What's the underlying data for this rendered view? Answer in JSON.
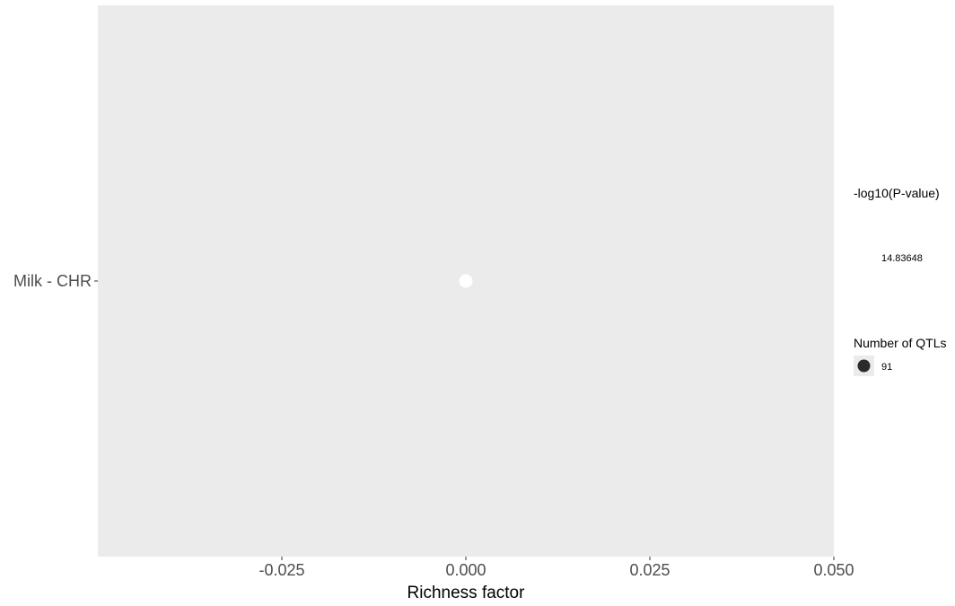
{
  "chart_data": {
    "type": "scatter",
    "x_title": "Richness factor",
    "y_categories": [
      "Milk - CHR"
    ],
    "x_ticks": [
      -0.025,
      0.0,
      0.025,
      0.05
    ],
    "x_tick_labels": [
      "-0.025",
      "0.000",
      "0.025",
      "0.050"
    ],
    "xlim": [
      -0.05,
      0.05
    ],
    "grid": false,
    "panel_background": "#ebebeb",
    "points": [
      {
        "category": "Milk - CHR",
        "x": 0.0,
        "neg_log10_p": 14.83648,
        "qtl_count": 91,
        "color": "#ffffff"
      }
    ],
    "legend": {
      "placement": "right",
      "color_title": "-log10(P-value)",
      "color_value_label": "14.83648",
      "size_title": "Number of QTLs",
      "size_value_label": "91",
      "size_key_color": "#2b2b2b"
    }
  }
}
